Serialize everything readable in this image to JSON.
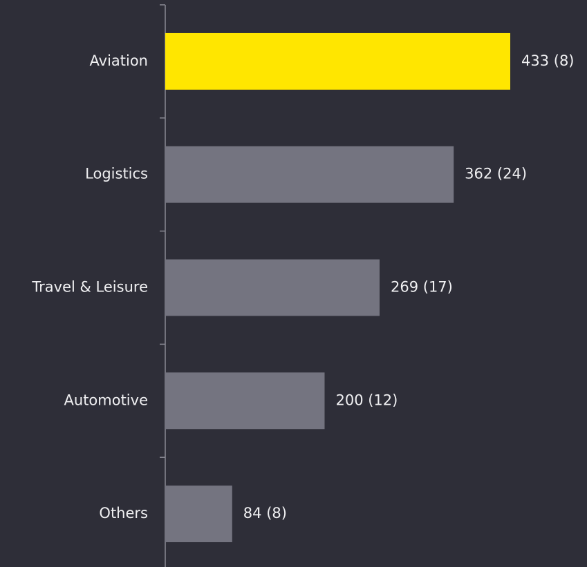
{
  "chart_data": {
    "type": "hbar",
    "categories": [
      "Aviation",
      "Logistics",
      "Travel & Leisure",
      "Automotive",
      "Others"
    ],
    "values": [
      433,
      362,
      269,
      200,
      84
    ],
    "value_labels": [
      "433 (8)",
      "362 (24)",
      "269 (17)",
      "200 (12)",
      "84 (8)"
    ],
    "colors": [
      "#ffe600",
      "#747480",
      "#747480",
      "#747480",
      "#747480"
    ]
  }
}
